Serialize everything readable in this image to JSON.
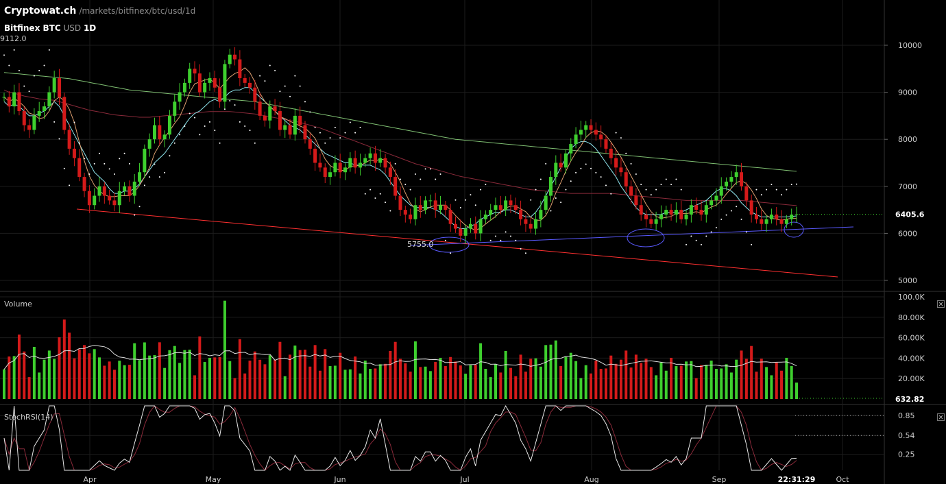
{
  "header": {
    "brand": "Cryptowat.ch",
    "path": "/markets/bitfinex/btc/usd/1d",
    "exchange_pair": "Bitfinex BTC",
    "quote": "USD",
    "interval": "1D",
    "visible_high": "9112.0"
  },
  "panes": {
    "volume_label": "Volume",
    "stochrsi_label": "StochRSI(14)"
  },
  "clock": "22:31:29",
  "colors": {
    "background": "#000000",
    "up": "#3ecf2e",
    "down": "#d41a1a",
    "support_line": "#5a5aff",
    "resistance_line": "#ff3030"
  },
  "chart_data": [
    {
      "type": "candlestick",
      "title": "Bitfinex BTC USD 1D",
      "x_tick_labels": [
        "Apr",
        "May",
        "Jun",
        "Jul",
        "Aug",
        "Sep",
        "Oct"
      ],
      "y_tick_labels": [
        "10000",
        "9000",
        "8000",
        "7000",
        "6000",
        "5000"
      ],
      "ylim": [
        4900,
        10500
      ],
      "last_price": "6405.6",
      "annotation_low": "5755.0",
      "close": [
        8900,
        8700,
        9000,
        8600,
        8300,
        8200,
        8500,
        8600,
        8700,
        9000,
        9300,
        8900,
        8200,
        7800,
        7600,
        7200,
        6900,
        6600,
        6800,
        7000,
        6800,
        6700,
        6600,
        6900,
        7000,
        6800,
        7100,
        7300,
        7800,
        8000,
        8300,
        8000,
        8100,
        8500,
        8800,
        9000,
        9200,
        9500,
        9400,
        9000,
        9200,
        9300,
        9100,
        8800,
        9600,
        9800,
        9700,
        9300,
        9200,
        9100,
        8800,
        8500,
        8400,
        8700,
        8600,
        8200,
        8300,
        8100,
        8500,
        8300,
        8000,
        7800,
        7500,
        7400,
        7200,
        7300,
        7500,
        7300,
        7400,
        7600,
        7400,
        7500,
        7600,
        7700,
        7500,
        7600,
        7400,
        7200,
        6800,
        6500,
        6400,
        6300,
        6600,
        6500,
        6700,
        6700,
        6500,
        6600,
        6500,
        6200,
        6100,
        5950,
        6100,
        6200,
        6000,
        6300,
        6400,
        6500,
        6600,
        6500,
        6700,
        6600,
        6500,
        6300,
        6200,
        6100,
        6300,
        6500,
        6800,
        7200,
        7500,
        7400,
        7700,
        7900,
        8100,
        8200,
        8300,
        8200,
        8100,
        8000,
        7800,
        7600,
        7400,
        7300,
        7000,
        6800,
        6600,
        6400,
        6300,
        6200,
        6300,
        6400,
        6500,
        6400,
        6500,
        6300,
        6400,
        6600,
        6500,
        6400,
        6600,
        6700,
        6800,
        7000,
        7100,
        7200,
        7300,
        7000,
        6700,
        6400,
        6300,
        6200,
        6300,
        6400,
        6300,
        6200,
        6300,
        6400,
        6405.6
      ],
      "sma_fast": [
        8800,
        8700,
        8750,
        8700,
        8600,
        8500,
        8500,
        8550,
        8600,
        8700,
        8800,
        8700,
        8500,
        8300,
        8100,
        7900,
        7700,
        7500,
        7300,
        7200,
        7100,
        6950,
        6850,
        6850,
        6900,
        6900,
        6950,
        7050,
        7200,
        7350,
        7500,
        7600,
        7700,
        7850,
        8000,
        8150,
        8300,
        8450,
        8550,
        8600,
        8700,
        8800,
        8850,
        8800,
        8900,
        9000,
        9050,
        9050,
        9100,
        9100,
        9000,
        8900,
        8800,
        8700,
        8600,
        8500,
        8400,
        8300,
        8250,
        8200,
        8100,
        8000,
        7900,
        7800,
        7700,
        7650,
        7600,
        7550,
        7500,
        7500,
        7450,
        7450,
        7450,
        7450,
        7400,
        7350,
        7250,
        7100,
        6950,
        6800,
        6700,
        6600,
        6550,
        6550,
        6550,
        6550,
        6500,
        6450,
        6350,
        6250,
        6150,
        6100,
        6100,
        6150,
        6200,
        6300,
        6350,
        6400,
        6450,
        6450,
        6500,
        6500,
        6450,
        6400,
        6350,
        6350,
        6450,
        6600,
        6800,
        7000,
        7200,
        7400,
        7600,
        7800,
        7900,
        7950,
        7950,
        7900,
        7800,
        7650,
        7500,
        7350,
        7200,
        7000,
        6850,
        6700,
        6550,
        6450,
        6400,
        6400,
        6400,
        6400,
        6450,
        6450,
        6450,
        6450,
        6500,
        6550,
        6600,
        6650,
        6700,
        6800,
        6900,
        6950,
        6950,
        6900,
        6800,
        6650,
        6550,
        6450,
        6400,
        6350,
        6350,
        6350,
        6350,
        6350,
        6350,
        6360,
        6370
      ],
      "sma_slow": [
        9050,
        9000,
        8980,
        8950,
        8920,
        8900,
        8880,
        8860,
        8850,
        8840,
        8830,
        8800,
        8770,
        8740,
        8710,
        8680,
        8650,
        8620,
        8600,
        8580,
        8560,
        8540,
        8520,
        8510,
        8500,
        8490,
        8480,
        8470,
        8470,
        8470,
        8480,
        8490,
        8500,
        8510,
        8520,
        8530,
        8540,
        8550,
        8560,
        8570,
        8580,
        8590,
        8590,
        8590,
        8590,
        8590,
        8580,
        8570,
        8560,
        8550,
        8540,
        8520,
        8500,
        8480,
        8460,
        8440,
        8420,
        8400,
        8380,
        8360,
        8330,
        8300,
        8270,
        8240,
        8200,
        8160,
        8120,
        8080,
        8040,
        8000,
        7960,
        7920,
        7880,
        7840,
        7800,
        7760,
        7720,
        7680,
        7640,
        7600,
        7560,
        7520,
        7480,
        7450,
        7420,
        7390,
        7360,
        7330,
        7300,
        7270,
        7240,
        7210,
        7190,
        7170,
        7150,
        7130,
        7110,
        7090,
        7070,
        7050,
        7030,
        7010,
        6990,
        6970,
        6950,
        6930,
        6920,
        6910,
        6900,
        6890,
        6880,
        6870,
        6860,
        6850,
        6850,
        6850,
        6850,
        6850,
        6850,
        6850,
        6850,
        6850,
        6840,
        6830,
        6820,
        6810,
        6800,
        6790,
        6780,
        6770,
        6760,
        6750,
        6740,
        6730,
        6720,
        6710,
        6700,
        6700,
        6700,
        6700,
        6700,
        6700,
        6700,
        6700,
        6700,
        6700,
        6700,
        6700,
        6690,
        6680,
        6670,
        6660,
        6650,
        6640,
        6630,
        6620,
        6610,
        6600,
        6590
      ],
      "sma_long": [
        9420,
        9410,
        9400,
        9390,
        9380,
        9370,
        9360,
        9350,
        9340,
        9330,
        9320,
        9310,
        9300,
        9290,
        9270,
        9250,
        9230,
        9210,
        9190,
        9170,
        9150,
        9130,
        9110,
        9090,
        9070,
        9050,
        9040,
        9030,
        9020,
        9010,
        9000,
        8990,
        8980,
        8970,
        8960,
        8950,
        8940,
        8930,
        8920,
        8910,
        8900,
        8890,
        8880,
        8870,
        8860,
        8850,
        8840,
        8830,
        8820,
        8810,
        8800,
        8780,
        8760,
        8740,
        8720,
        8700,
        8680,
        8660,
        8640,
        8620,
        8600,
        8580,
        8560,
        8540,
        8520,
        8500,
        8480,
        8460,
        8440,
        8420,
        8400,
        8380,
        8360,
        8340,
        8320,
        8300,
        8280,
        8260,
        8240,
        8220,
        8200,
        8180,
        8160,
        8140,
        8120,
        8100,
        8080,
        8060,
        8040,
        8020,
        8000,
        7990,
        7980,
        7970,
        7960,
        7950,
        7940,
        7930,
        7920,
        7910,
        7900,
        7890,
        7880,
        7870,
        7860,
        7850,
        7840,
        7830,
        7820,
        7810,
        7800,
        7790,
        7780,
        7770,
        7760,
        7750,
        7740,
        7730,
        7720,
        7710,
        7700,
        7690,
        7680,
        7670,
        7660,
        7650,
        7640,
        7630,
        7620,
        7610,
        7600,
        7590,
        7580,
        7570,
        7560,
        7550,
        7540,
        7530,
        7520,
        7510,
        7500,
        7490,
        7480,
        7470,
        7460,
        7450,
        7440,
        7430,
        7420,
        7410,
        7400,
        7390,
        7380,
        7370,
        7360,
        7350,
        7340,
        7330,
        7320
      ],
      "parabolic_sar_dotted": true,
      "trendlines": [
        "support (blue, rising)",
        "resistance (red, falling)"
      ],
      "circled_lows": 3,
      "grid": true
    },
    {
      "type": "bar",
      "title": "Volume",
      "y_tick_labels": [
        "100.0K",
        "80.00K",
        "60.00K",
        "40.00K",
        "20.00K"
      ],
      "ylim": [
        0,
        104000
      ],
      "last_value": "632.82"
    },
    {
      "type": "line",
      "title": "StochRSI(14)",
      "y_tick_labels": [
        "0.85",
        "0.54",
        "0.25"
      ],
      "ylim": [
        0,
        1
      ]
    }
  ]
}
